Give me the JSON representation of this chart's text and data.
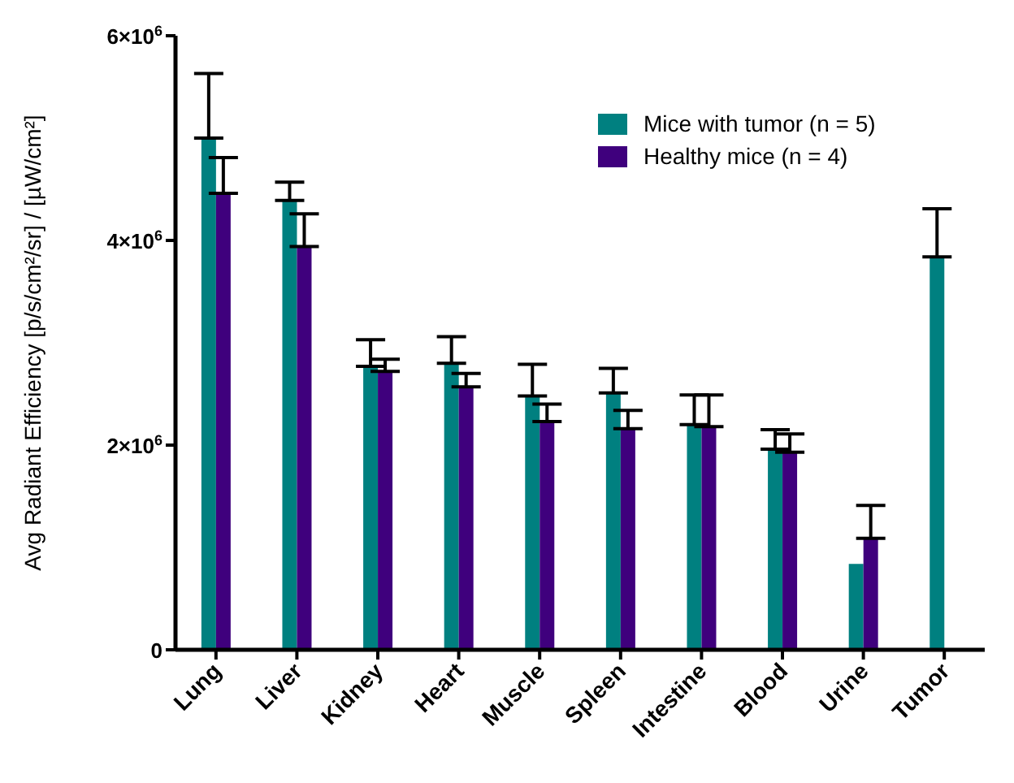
{
  "chart_data": {
    "type": "bar",
    "ylabel": "Avg Radiant Efficiency [p/s/cm²/sr] / [µW/cm²]",
    "categories": [
      "Lung",
      "Liver",
      "Kidney",
      "Heart",
      "Muscle",
      "Spleen",
      "Intestine",
      "Blood",
      "Urine",
      "Tumor"
    ],
    "series": [
      {
        "name": "Mice with tumor (n = 5)",
        "color": "#008080",
        "values": [
          5000000,
          4390000,
          2770000,
          2800000,
          2480000,
          2510000,
          2200000,
          1960000,
          840000,
          3840000
        ],
        "errors": [
          630000,
          180000,
          260000,
          260000,
          310000,
          240000,
          290000,
          190000,
          null,
          470000
        ]
      },
      {
        "name": "Healthy mice (n = 4)",
        "color": "#3f007d",
        "values": [
          4460000,
          3940000,
          2720000,
          2570000,
          2230000,
          2160000,
          2180000,
          1930000,
          1090000,
          null
        ],
        "errors": [
          350000,
          320000,
          120000,
          130000,
          170000,
          180000,
          310000,
          180000,
          320000,
          null
        ]
      }
    ],
    "ylim": [
      0,
      6000000
    ],
    "yticks": [
      {
        "value": 0,
        "label": "0"
      },
      {
        "value": 2000000,
        "label": "2×10$^{6}$"
      },
      {
        "value": 4000000,
        "label": "4×10$^{6}$"
      },
      {
        "value": 6000000,
        "label": "6×10$^{6}$"
      }
    ],
    "grid": false,
    "legend": "top right"
  }
}
